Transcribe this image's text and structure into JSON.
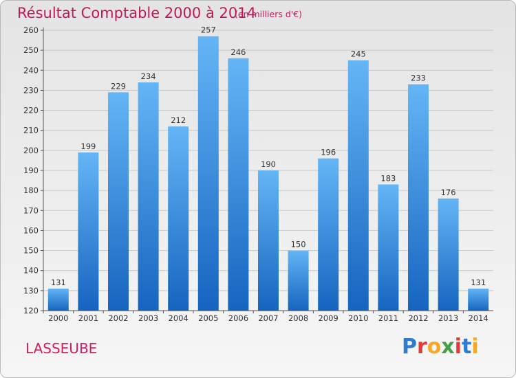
{
  "header": {
    "title": "Résultat Comptable 2000 à 2014",
    "unit": "(en milliers d'€)"
  },
  "footer": {
    "commune": "LASSEUBE",
    "logo_text": "Proxiti",
    "logo_colors": [
      "#2e7bd1",
      "#e53935",
      "#f9a825",
      "#43a047",
      "#e53935",
      "#2e7bd1",
      "#f9a825"
    ]
  },
  "colors": {
    "bar_top": "#64b5f6",
    "bar_bottom": "#1565c0",
    "title": "#c2185b"
  },
  "chart_data": {
    "type": "bar",
    "title": "Résultat Comptable 2000 à 2014",
    "categories": [
      "2000",
      "2001",
      "2002",
      "2003",
      "2004",
      "2005",
      "2006",
      "2007",
      "2008",
      "2009",
      "2010",
      "2011",
      "2012",
      "2013",
      "2014"
    ],
    "values": [
      131,
      199,
      229,
      234,
      212,
      257,
      246,
      190,
      150,
      196,
      245,
      183,
      233,
      176,
      131
    ],
    "ylim": [
      120,
      260
    ],
    "yticks": [
      120,
      130,
      140,
      150,
      160,
      170,
      180,
      190,
      200,
      210,
      220,
      230,
      240,
      250,
      260
    ],
    "grid": true,
    "xlabel": "",
    "ylabel": ""
  }
}
